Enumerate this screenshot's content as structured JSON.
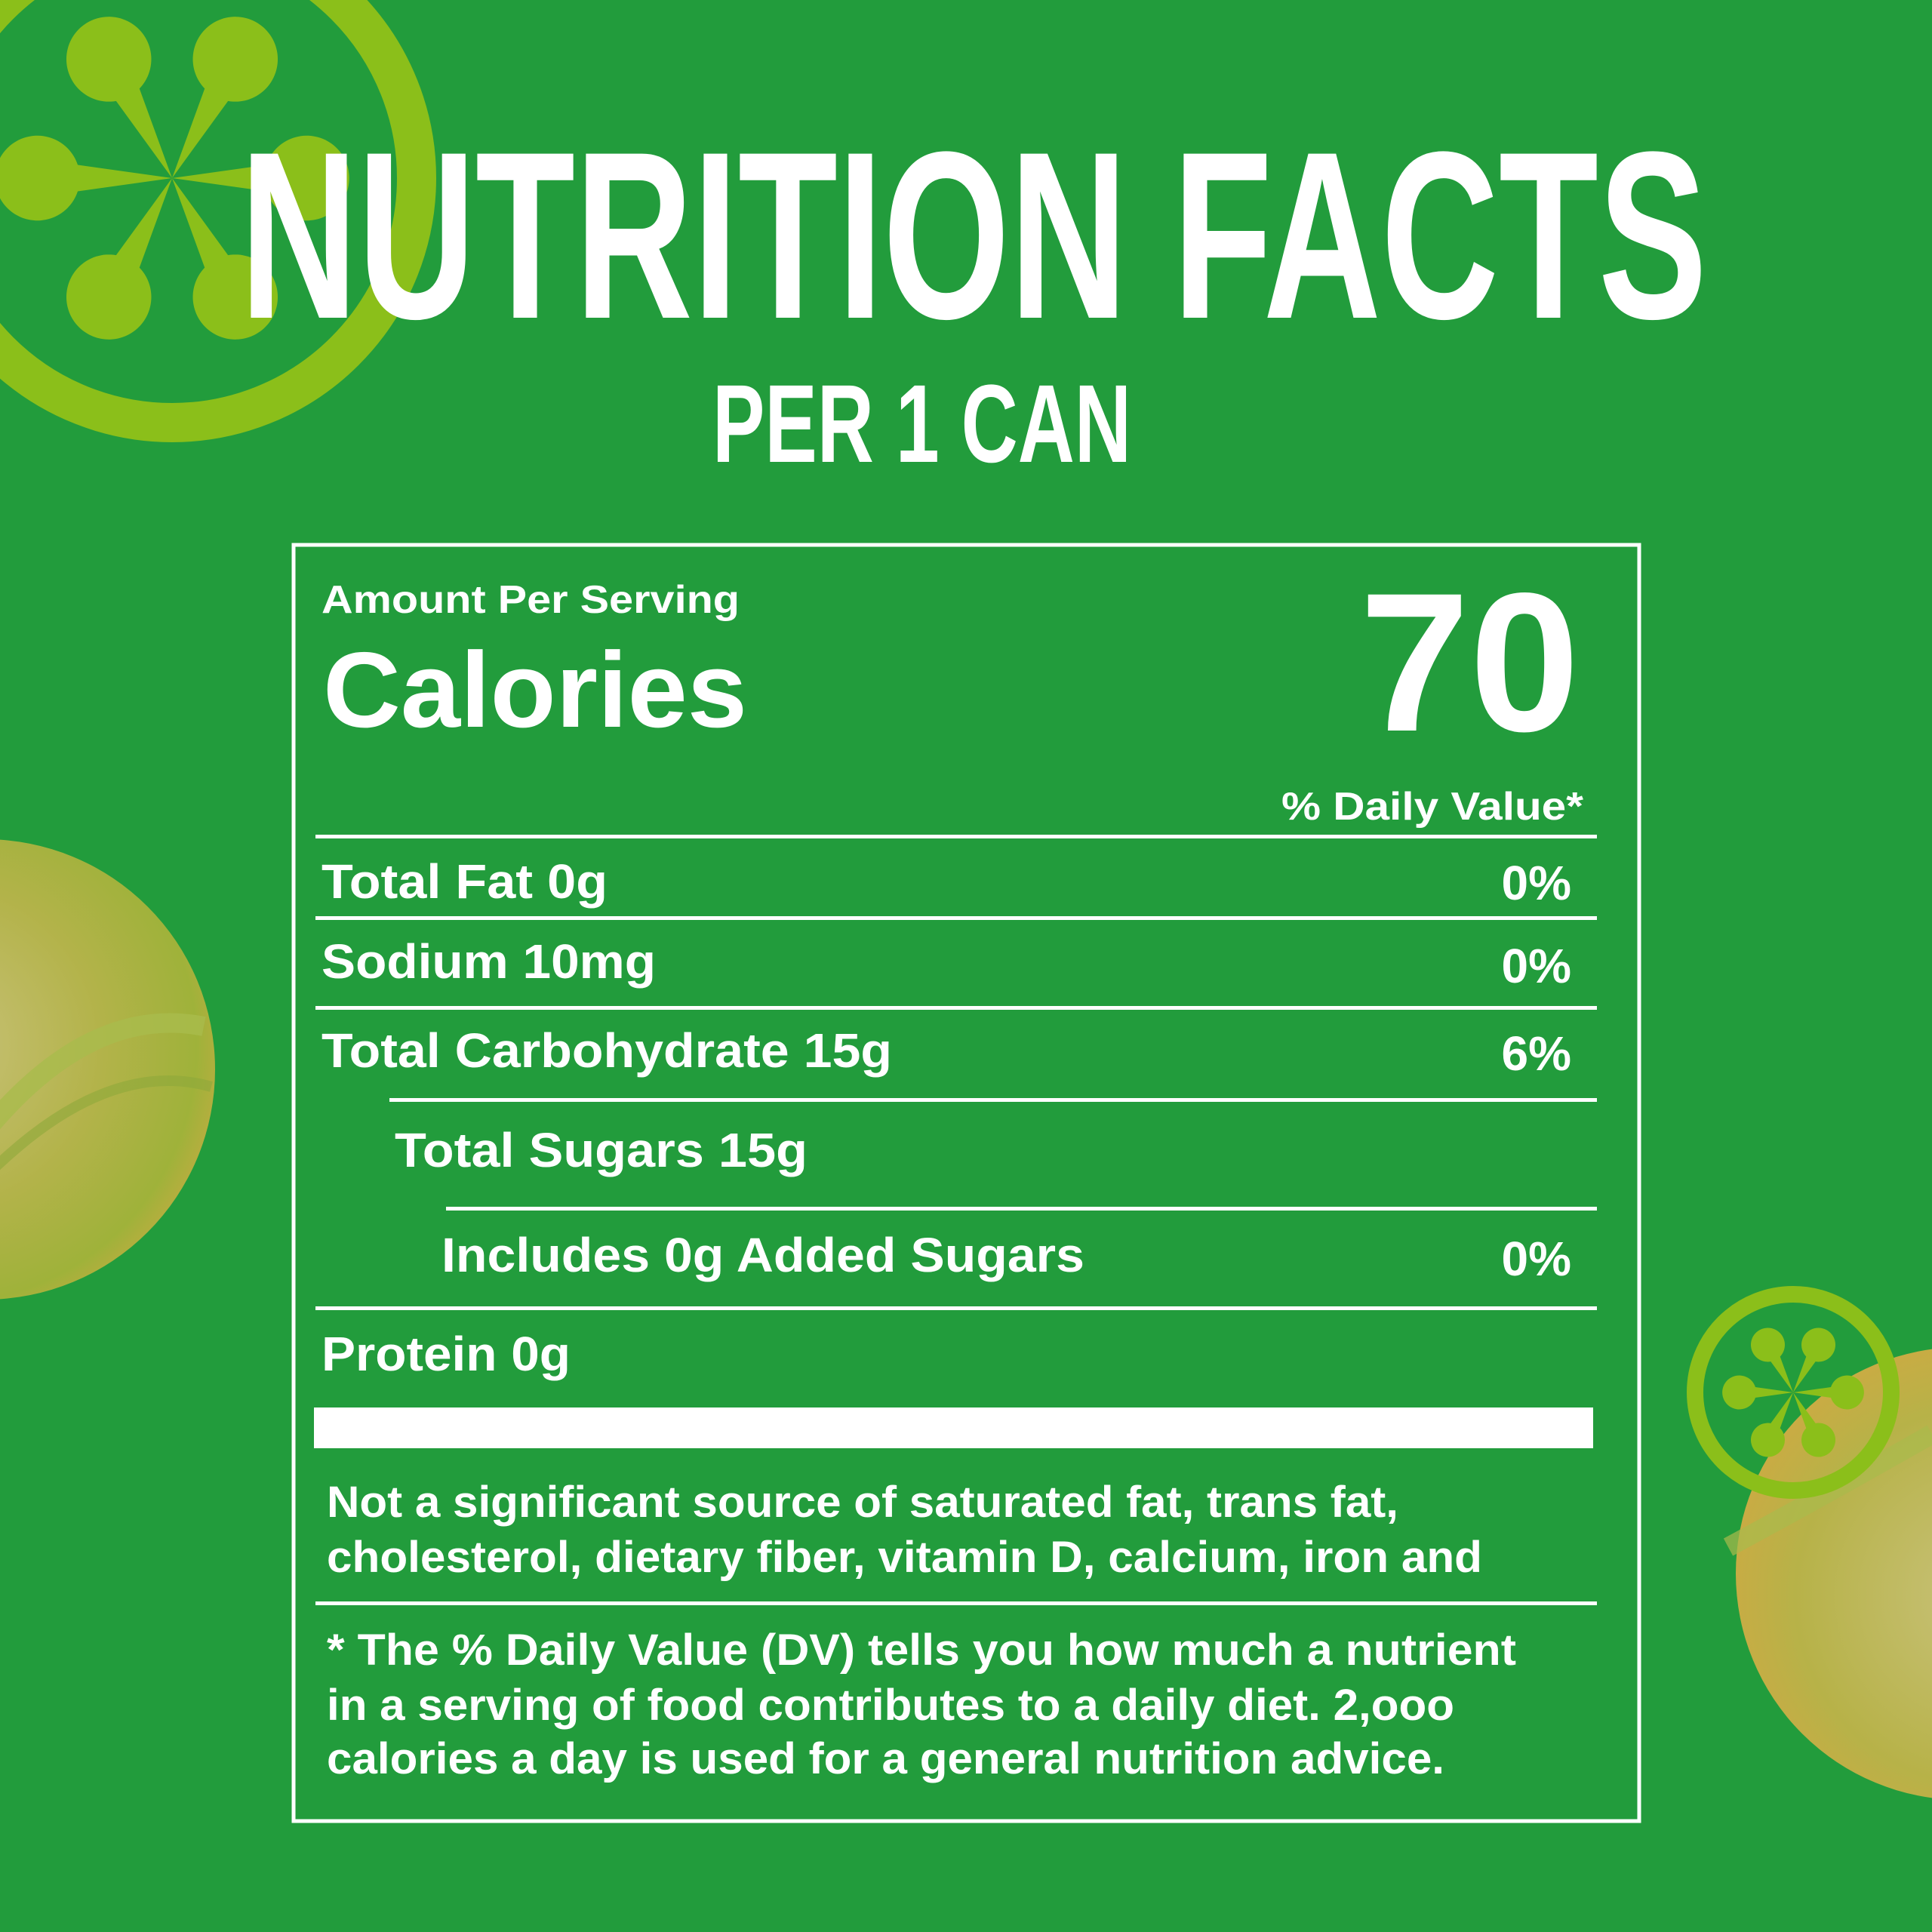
{
  "colors": {
    "background": "#229c3c",
    "accent_lime": "#8bbf1a",
    "text": "#ffffff"
  },
  "header": {
    "title": "NUTRITION FACTS",
    "subtitle": "PER 1 CAN"
  },
  "label": {
    "amount_per_serving": "Amount Per Serving",
    "calories_label": "Calories",
    "calories_value": "70",
    "daily_value_header": "% Daily Value*",
    "rows": [
      {
        "name": "Total Fat 0g",
        "dv": "0%"
      },
      {
        "name": "Sodium 10mg",
        "dv": "0%"
      },
      {
        "name": "Total Carbohydrate 15g",
        "dv": "6%"
      },
      {
        "name": "Total Sugars 15g",
        "dv": ""
      },
      {
        "name": "Includes 0g Added Sugars",
        "dv": "0%"
      },
      {
        "name": "Protein 0g",
        "dv": ""
      }
    ],
    "note_lines": [
      "Not a significant source of saturated fat, trans fat,",
      "cholesterol, dietary fiber, vitamin D, calcium, iron and"
    ],
    "footnote_lines": [
      "* The % Daily Value (DV) tells  you how much a nutrient",
      "in a serving of food contributes to a daily diet. 2,ooo",
      "calories a day is used for a general nutrition advice."
    ]
  },
  "decorations": {
    "icons": [
      "lime-slice-asterisk-icon",
      "lime-slice-asterisk-icon-small"
    ],
    "photos": [
      "lime-soda-photo-left",
      "lime-soda-photo-right"
    ]
  }
}
